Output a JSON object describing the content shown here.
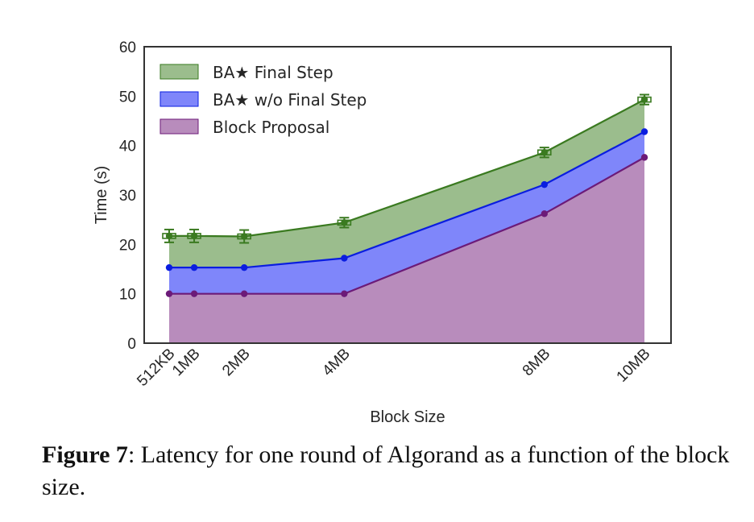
{
  "chart_data": {
    "type": "area",
    "stacked": true,
    "xlabel": "Block Size",
    "ylabel": "Time (s)",
    "x": [
      0.5,
      1,
      2,
      4,
      8,
      10
    ],
    "x_tick_labels": [
      "512KB",
      "1MB",
      "2MB",
      "4MB",
      "8MB",
      "10MB"
    ],
    "xlim": [
      0.5,
      10
    ],
    "ylim": [
      0,
      60
    ],
    "y_ticks": [
      "0",
      "10",
      "20",
      "30",
      "40",
      "50",
      "60"
    ],
    "grid": false,
    "legend_position": "top-left",
    "series": [
      {
        "name": "BA★ Final Step",
        "color": "#3a7a20",
        "fill": "#9bbd8d",
        "cumulative": [
          21.7,
          21.7,
          21.6,
          24.4,
          38.6,
          49.3
        ],
        "error": [
          1.3,
          1.3,
          1.3,
          1.0,
          1.0,
          1.0
        ]
      },
      {
        "name": "BA★ w/o Final Step",
        "color": "#0a1de0",
        "fill": "#7f86fa",
        "cumulative": [
          15.3,
          15.3,
          15.3,
          17.2,
          32.1,
          42.8
        ]
      },
      {
        "name": "Block Proposal",
        "color": "#6c1a78",
        "fill": "#b88cbc",
        "cumulative": [
          10.0,
          10.0,
          10.0,
          10.0,
          26.2,
          37.6
        ]
      }
    ]
  },
  "caption": {
    "label": "Figure 7",
    "text": ": Latency for one round of Algorand as a function of the block size."
  }
}
